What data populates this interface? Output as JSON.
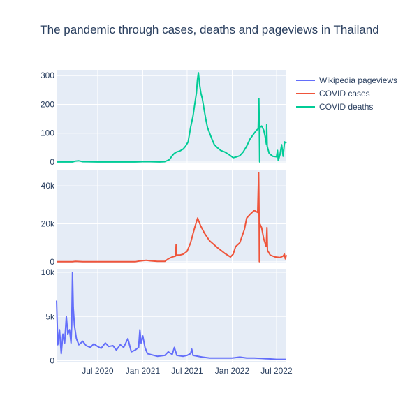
{
  "chart_data": {
    "type": "line",
    "title": "The pandemic through cases, deaths and pageviews in Thailand",
    "xlabel": "",
    "x_range": [
      "2020-01-15",
      "2022-08-10"
    ],
    "x_ticks": [
      {
        "date": "2020-07-01",
        "label": "Jul 2020"
      },
      {
        "date": "2021-01-01",
        "label": "Jan 2021"
      },
      {
        "date": "2021-07-01",
        "label": "Jul 2021"
      },
      {
        "date": "2022-01-01",
        "label": "Jan 2022"
      },
      {
        "date": "2022-07-01",
        "label": "Jul 2022"
      }
    ],
    "legend": {
      "placement": "top-right",
      "items": [
        {
          "name": "Wikipedia pageviews",
          "color": "#636efa"
        },
        {
          "name": "COVID cases",
          "color": "#ef553b"
        },
        {
          "name": "COVID deaths",
          "color": "#00cc96"
        }
      ]
    },
    "panels": [
      {
        "series": "COVID deaths",
        "color": "#00cc96",
        "ylim": [
          -5,
          320
        ],
        "y_ticks": [
          {
            "value": 0,
            "label": "0"
          },
          {
            "value": 100,
            "label": "100"
          },
          {
            "value": 200,
            "label": "200"
          },
          {
            "value": 300,
            "label": "300"
          }
        ],
        "points": [
          [
            "2020-01-15",
            0
          ],
          [
            "2020-03-20",
            0
          ],
          [
            "2020-04-01",
            3
          ],
          [
            "2020-04-15",
            4
          ],
          [
            "2020-05-01",
            1
          ],
          [
            "2020-07-01",
            0
          ],
          [
            "2020-12-01",
            0
          ],
          [
            "2021-01-01",
            1
          ],
          [
            "2021-02-01",
            1
          ],
          [
            "2021-03-10",
            0
          ],
          [
            "2021-04-01",
            1
          ],
          [
            "2021-04-20",
            8
          ],
          [
            "2021-05-01",
            22
          ],
          [
            "2021-05-10",
            30
          ],
          [
            "2021-05-20",
            35
          ],
          [
            "2021-06-01",
            38
          ],
          [
            "2021-06-15",
            45
          ],
          [
            "2021-06-25",
            55
          ],
          [
            "2021-07-05",
            70
          ],
          [
            "2021-07-15",
            120
          ],
          [
            "2021-07-25",
            160
          ],
          [
            "2021-08-01",
            200
          ],
          [
            "2021-08-08",
            240
          ],
          [
            "2021-08-12",
            285
          ],
          [
            "2021-08-16",
            310
          ],
          [
            "2021-08-21",
            270
          ],
          [
            "2021-08-26",
            240
          ],
          [
            "2021-09-01",
            220
          ],
          [
            "2021-09-08",
            185
          ],
          [
            "2021-09-15",
            150
          ],
          [
            "2021-09-22",
            120
          ],
          [
            "2021-10-01",
            100
          ],
          [
            "2021-10-10",
            80
          ],
          [
            "2021-10-20",
            60
          ],
          [
            "2021-11-01",
            50
          ],
          [
            "2021-11-15",
            40
          ],
          [
            "2021-12-01",
            35
          ],
          [
            "2021-12-20",
            25
          ],
          [
            "2022-01-05",
            15
          ],
          [
            "2022-01-20",
            18
          ],
          [
            "2022-02-01",
            22
          ],
          [
            "2022-02-15",
            35
          ],
          [
            "2022-03-01",
            55
          ],
          [
            "2022-03-15",
            80
          ],
          [
            "2022-04-01",
            100
          ],
          [
            "2022-04-10",
            110
          ],
          [
            "2022-04-17",
            115
          ],
          [
            "2022-04-20",
            220
          ],
          [
            "2022-04-22",
            105
          ],
          [
            "2022-04-23",
            0
          ],
          [
            "2022-04-24",
            120
          ],
          [
            "2022-05-01",
            125
          ],
          [
            "2022-05-10",
            110
          ],
          [
            "2022-05-15",
            90
          ],
          [
            "2022-05-21",
            60
          ],
          [
            "2022-05-22",
            130
          ],
          [
            "2022-05-24",
            55
          ],
          [
            "2022-06-01",
            30
          ],
          [
            "2022-06-15",
            20
          ],
          [
            "2022-07-01",
            18
          ],
          [
            "2022-07-05",
            40
          ],
          [
            "2022-07-08",
            5
          ],
          [
            "2022-07-15",
            25
          ],
          [
            "2022-07-22",
            60
          ],
          [
            "2022-07-28",
            20
          ],
          [
            "2022-08-03",
            70
          ],
          [
            "2022-08-10",
            65
          ]
        ]
      },
      {
        "series": "COVID cases",
        "color": "#ef553b",
        "ylim": [
          -800,
          48500
        ],
        "y_ticks": [
          {
            "value": 0,
            "label": "0"
          },
          {
            "value": 20000,
            "label": "20k"
          },
          {
            "value": 40000,
            "label": "40k"
          }
        ],
        "points": [
          [
            "2020-01-15",
            0
          ],
          [
            "2020-03-20",
            0
          ],
          [
            "2020-04-01",
            200
          ],
          [
            "2020-05-01",
            0
          ],
          [
            "2020-12-01",
            0
          ],
          [
            "2020-12-20",
            400
          ],
          [
            "2021-01-01",
            600
          ],
          [
            "2021-01-15",
            800
          ],
          [
            "2021-02-01",
            500
          ],
          [
            "2021-03-01",
            200
          ],
          [
            "2021-04-01",
            200
          ],
          [
            "2021-04-15",
            1500
          ],
          [
            "2021-05-01",
            2500
          ],
          [
            "2021-05-15",
            3000
          ],
          [
            "2021-05-17",
            9000
          ],
          [
            "2021-05-19",
            3500
          ],
          [
            "2021-06-01",
            3500
          ],
          [
            "2021-06-15",
            4000
          ],
          [
            "2021-07-01",
            5500
          ],
          [
            "2021-07-15",
            10000
          ],
          [
            "2021-08-01",
            18000
          ],
          [
            "2021-08-13",
            23000
          ],
          [
            "2021-08-25",
            19000
          ],
          [
            "2021-09-10",
            15000
          ],
          [
            "2021-10-01",
            11000
          ],
          [
            "2021-11-01",
            7500
          ],
          [
            "2021-12-01",
            4500
          ],
          [
            "2021-12-25",
            2500
          ],
          [
            "2022-01-05",
            4000
          ],
          [
            "2022-01-15",
            8000
          ],
          [
            "2022-02-01",
            10000
          ],
          [
            "2022-02-20",
            17000
          ],
          [
            "2022-03-01",
            23000
          ],
          [
            "2022-03-15",
            25000
          ],
          [
            "2022-04-01",
            27000
          ],
          [
            "2022-04-15",
            26000
          ],
          [
            "2022-04-19",
            47000
          ],
          [
            "2022-04-21",
            22000
          ],
          [
            "2022-04-22",
            0
          ],
          [
            "2022-04-24",
            20000
          ],
          [
            "2022-05-01",
            18000
          ],
          [
            "2022-05-10",
            12000
          ],
          [
            "2022-05-20",
            8000
          ],
          [
            "2022-05-23",
            18000
          ],
          [
            "2022-05-25",
            6000
          ],
          [
            "2022-06-05",
            3500
          ],
          [
            "2022-06-25",
            2500
          ],
          [
            "2022-07-15",
            2200
          ],
          [
            "2022-07-28",
            3000
          ],
          [
            "2022-08-02",
            4000
          ],
          [
            "2022-08-06",
            1500
          ],
          [
            "2022-08-10",
            3500
          ]
        ]
      },
      {
        "series": "Wikipedia pageviews",
        "color": "#636efa",
        "ylim": [
          -200,
          10400
        ],
        "y_ticks": [
          {
            "value": 0,
            "label": "0"
          },
          {
            "value": 5000,
            "label": "5k"
          },
          {
            "value": 10000,
            "label": "10k"
          }
        ],
        "points": [
          [
            "2020-01-15",
            6800
          ],
          [
            "2020-01-20",
            1800
          ],
          [
            "2020-01-27",
            3500
          ],
          [
            "2020-02-03",
            800
          ],
          [
            "2020-02-10",
            3000
          ],
          [
            "2020-02-17",
            2000
          ],
          [
            "2020-02-24",
            5000
          ],
          [
            "2020-03-01",
            3000
          ],
          [
            "2020-03-08",
            3500
          ],
          [
            "2020-03-14",
            2000
          ],
          [
            "2020-03-17",
            4000
          ],
          [
            "2020-03-20",
            10000
          ],
          [
            "2020-03-23",
            6000
          ],
          [
            "2020-03-28",
            4000
          ],
          [
            "2020-04-05",
            2500
          ],
          [
            "2020-04-15",
            1800
          ],
          [
            "2020-05-01",
            2200
          ],
          [
            "2020-05-15",
            1700
          ],
          [
            "2020-06-01",
            1500
          ],
          [
            "2020-06-15",
            1900
          ],
          [
            "2020-07-01",
            1600
          ],
          [
            "2020-07-15",
            1400
          ],
          [
            "2020-08-01",
            2000
          ],
          [
            "2020-08-15",
            1600
          ],
          [
            "2020-09-01",
            1700
          ],
          [
            "2020-09-15",
            1200
          ],
          [
            "2020-10-01",
            1800
          ],
          [
            "2020-10-15",
            1500
          ],
          [
            "2020-11-01",
            2500
          ],
          [
            "2020-11-15",
            1000
          ],
          [
            "2020-12-01",
            1200
          ],
          [
            "2020-12-15",
            1500
          ],
          [
            "2020-12-20",
            3500
          ],
          [
            "2020-12-25",
            2000
          ],
          [
            "2021-01-01",
            2800
          ],
          [
            "2021-01-10",
            1500
          ],
          [
            "2021-01-20",
            800
          ],
          [
            "2021-02-01",
            700
          ],
          [
            "2021-03-01",
            500
          ],
          [
            "2021-04-01",
            600
          ],
          [
            "2021-04-15",
            1000
          ],
          [
            "2021-05-01",
            700
          ],
          [
            "2021-05-10",
            1500
          ],
          [
            "2021-05-20",
            600
          ],
          [
            "2021-06-15",
            500
          ],
          [
            "2021-07-01",
            600
          ],
          [
            "2021-07-15",
            800
          ],
          [
            "2021-07-20",
            1300
          ],
          [
            "2021-07-25",
            600
          ],
          [
            "2021-09-01",
            400
          ],
          [
            "2021-10-01",
            300
          ],
          [
            "2021-11-01",
            300
          ],
          [
            "2021-12-01",
            300
          ],
          [
            "2022-01-01",
            300
          ],
          [
            "2022-02-01",
            400
          ],
          [
            "2022-03-01",
            300
          ],
          [
            "2022-04-01",
            300
          ],
          [
            "2022-05-01",
            250
          ],
          [
            "2022-06-01",
            200
          ],
          [
            "2022-07-01",
            150
          ],
          [
            "2022-08-10",
            150
          ]
        ]
      }
    ]
  }
}
